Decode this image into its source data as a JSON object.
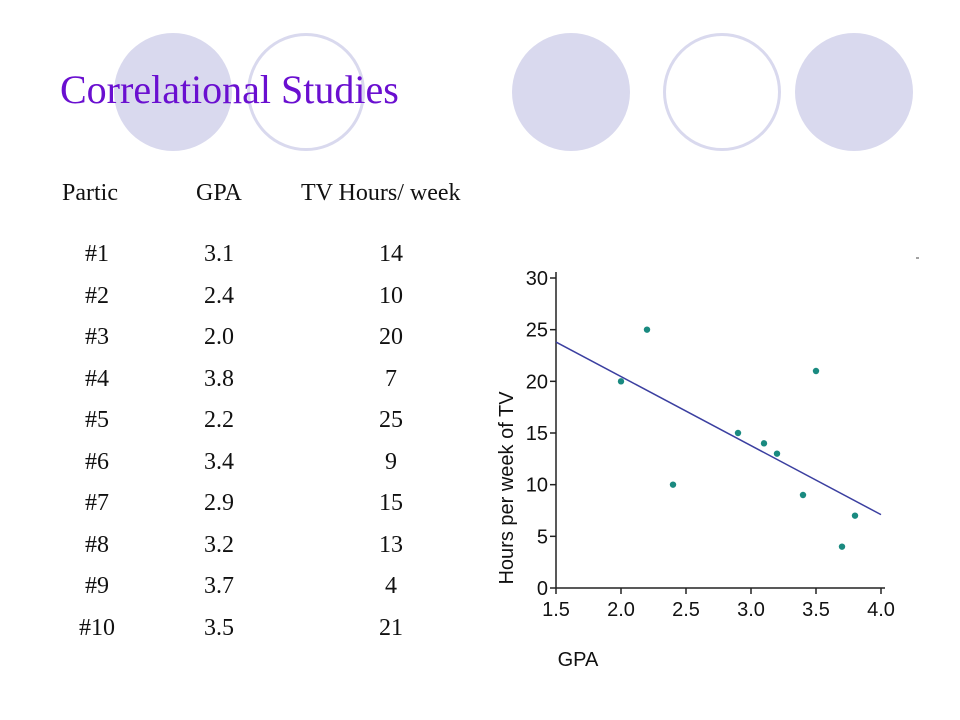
{
  "title": "Correlational Studies",
  "table": {
    "headers": [
      "Partic",
      "GPA",
      "TV Hours/ week"
    ],
    "rows": [
      [
        "#1",
        "3.1",
        "14"
      ],
      [
        "#2",
        "2.4",
        "10"
      ],
      [
        "#3",
        "2.0",
        "20"
      ],
      [
        "#4",
        "3.8",
        "7"
      ],
      [
        "#5",
        "2.2",
        "25"
      ],
      [
        "#6",
        "3.4",
        "9"
      ],
      [
        "#7",
        "2.9",
        "15"
      ],
      [
        "#8",
        "3.2",
        "13"
      ],
      [
        "#9",
        "3.7",
        "4"
      ],
      [
        "#10",
        "3.5",
        "21"
      ]
    ]
  },
  "chart_data": {
    "type": "scatter",
    "xlabel": "GPA",
    "ylabel": "Hours per week of TV",
    "xlim": [
      1.5,
      4.0
    ],
    "ylim": [
      0,
      30
    ],
    "xticks": [
      "1.5",
      "2.0",
      "2.5",
      "3.0",
      "3.5",
      "4.0"
    ],
    "yticks": [
      "0",
      "5",
      "10",
      "15",
      "20",
      "25",
      "30"
    ],
    "points": [
      {
        "x": 3.1,
        "y": 14
      },
      {
        "x": 2.4,
        "y": 10
      },
      {
        "x": 2.0,
        "y": 20
      },
      {
        "x": 3.8,
        "y": 7
      },
      {
        "x": 2.2,
        "y": 25
      },
      {
        "x": 3.4,
        "y": 9
      },
      {
        "x": 2.9,
        "y": 15
      },
      {
        "x": 3.2,
        "y": 13
      },
      {
        "x": 3.7,
        "y": 4
      },
      {
        "x": 3.5,
        "y": 21
      }
    ],
    "trendline": {
      "x": [
        1.5,
        4.0
      ],
      "y": [
        23.8,
        7.1
      ]
    },
    "grid": false,
    "point_color": "#1a8a80",
    "line_color": "#3b3fa0"
  }
}
